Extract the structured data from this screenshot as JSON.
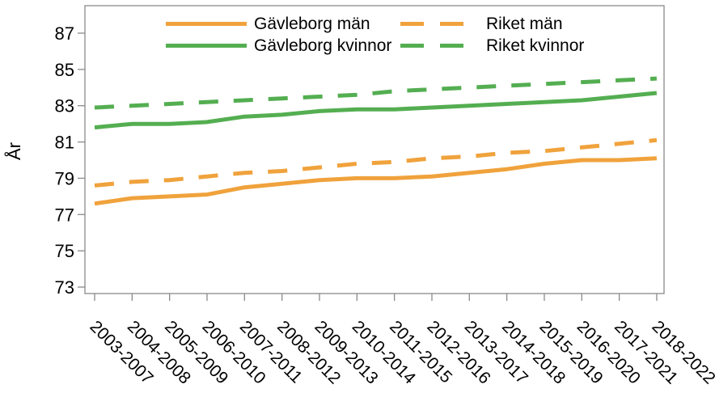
{
  "chart_data": {
    "type": "line",
    "title": "",
    "xlabel": "",
    "ylabel": "År",
    "grid": false,
    "legend_position": "top-inside",
    "categories": [
      "2003-2007",
      "2004-2008",
      "2005-2009",
      "2006-2010",
      "2007-2011",
      "2008-2012",
      "2009-2013",
      "2010-2014",
      "2011-2015",
      "2012-2016",
      "2013-2017",
      "2014-2018",
      "2015-2019",
      "2016-2020",
      "2017-2021",
      "2018-2022"
    ],
    "yticks": [
      73,
      75,
      77,
      79,
      81,
      83,
      85,
      87
    ],
    "ylim": [
      72.6,
      88.5
    ],
    "series": [
      {
        "name": "Gävleborg män",
        "color": "#F0A23C",
        "dash": false,
        "values": [
          77.6,
          77.9,
          78.0,
          78.1,
          78.5,
          78.7,
          78.9,
          79.0,
          79.0,
          79.1,
          79.3,
          79.5,
          79.8,
          80.0,
          80.0,
          80.1
        ]
      },
      {
        "name": "Gävleborg kvinnor",
        "color": "#54AE51",
        "dash": false,
        "values": [
          81.8,
          82.0,
          82.0,
          82.1,
          82.4,
          82.5,
          82.7,
          82.8,
          82.8,
          82.9,
          83.0,
          83.1,
          83.2,
          83.3,
          83.5,
          83.7
        ]
      },
      {
        "name": "Riket män",
        "color": "#F0A23C",
        "dash": true,
        "values": [
          78.6,
          78.8,
          78.9,
          79.1,
          79.3,
          79.4,
          79.6,
          79.8,
          79.9,
          80.1,
          80.2,
          80.4,
          80.5,
          80.7,
          80.9,
          81.1
        ]
      },
      {
        "name": "Riket kvinnor",
        "color": "#54AE51",
        "dash": true,
        "values": [
          82.9,
          83.0,
          83.1,
          83.2,
          83.3,
          83.4,
          83.5,
          83.6,
          83.8,
          83.9,
          84.0,
          84.1,
          84.2,
          84.3,
          84.4,
          84.5
        ]
      }
    ],
    "axis_color": "#8A8A8A",
    "text_color": "#000000"
  }
}
